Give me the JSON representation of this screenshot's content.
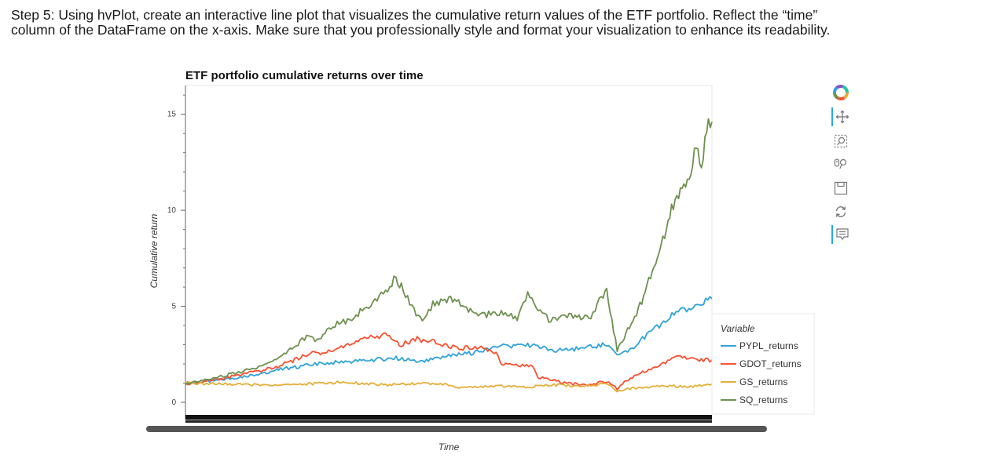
{
  "instructions": {
    "line1": "Step 5: Using hvPlot, create an interactive line plot that visualizes the cumulative return values of the ETF portfolio. Reflect the “time”",
    "line2": "column of the DataFrame on the x-axis. Make sure that you professionally style and format your visualization to enhance its readability."
  },
  "toolbar": {
    "tools": [
      {
        "icon": "bokeh-logo-icon",
        "active": false
      },
      {
        "icon": "pan-icon",
        "active": true
      },
      {
        "icon": "box-zoom-icon",
        "active": false
      },
      {
        "icon": "wheel-zoom-icon",
        "active": false
      },
      {
        "icon": "save-icon",
        "active": false
      },
      {
        "icon": "reset-icon",
        "active": false
      },
      {
        "icon": "hover-icon",
        "active": true
      }
    ],
    "accent_color": "#26aae1"
  },
  "chart_data": {
    "type": "line",
    "title": "ETF portfolio cumulative returns over time",
    "xlabel": "Time",
    "ylabel": "Cumulative return",
    "ylim": [
      -0.9,
      16.5
    ],
    "yticks": [
      0,
      5,
      10,
      15
    ],
    "ytick_labels": [
      "0",
      "5",
      "10",
      "15"
    ],
    "xlim": [
      0,
      100
    ],
    "x_tick_labels_legible": false,
    "grid": false,
    "legend_title": "Variable",
    "legend_position": "right-bottom",
    "series": [
      {
        "name": "PYPL_returns",
        "color": "#30a2da",
        "x": [
          0,
          5,
          10,
          15,
          20,
          25,
          30,
          35,
          40,
          45,
          50,
          55,
          60,
          65,
          70,
          75,
          80,
          82,
          84,
          86,
          88,
          90,
          92,
          94,
          96,
          98,
          100
        ],
        "values": [
          1.0,
          1.1,
          1.3,
          1.55,
          1.8,
          2.0,
          2.1,
          2.2,
          2.3,
          2.1,
          2.4,
          2.6,
          2.9,
          3.0,
          2.7,
          2.8,
          3.0,
          2.4,
          2.6,
          3.1,
          3.6,
          4.0,
          4.5,
          4.8,
          4.9,
          5.2,
          5.4
        ]
      },
      {
        "name": "GDOT_returns",
        "color": "#fc4f30",
        "x": [
          0,
          4,
          8,
          12,
          16,
          20,
          23,
          26,
          30,
          34,
          38,
          41,
          44,
          48,
          52,
          55,
          59,
          60,
          66,
          67,
          72,
          76,
          80,
          82,
          83,
          86,
          90,
          92,
          94,
          96,
          98,
          100
        ],
        "values": [
          0.95,
          1.1,
          1.3,
          1.5,
          1.75,
          2.1,
          2.5,
          2.6,
          2.9,
          3.3,
          3.5,
          3.0,
          3.3,
          3.1,
          2.8,
          2.9,
          2.6,
          2.0,
          1.9,
          1.3,
          1.0,
          0.9,
          1.1,
          0.7,
          1.0,
          1.5,
          1.9,
          2.2,
          2.4,
          2.3,
          2.2,
          2.2
        ]
      },
      {
        "name": "GS_returns",
        "color": "#e5ae38",
        "x": [
          0,
          8,
          15,
          23,
          30,
          38,
          45,
          50,
          52,
          55,
          60,
          65,
          70,
          75,
          80,
          82,
          84,
          88,
          92,
          96,
          100
        ],
        "values": [
          1.0,
          0.95,
          0.9,
          0.95,
          1.05,
          0.9,
          1.0,
          0.9,
          0.75,
          0.8,
          0.85,
          0.8,
          0.9,
          0.85,
          0.95,
          0.6,
          0.7,
          0.8,
          0.85,
          0.8,
          0.95
        ]
      },
      {
        "name": "SQ_returns",
        "color": "#6d904f",
        "x": [
          0,
          3,
          6,
          9,
          12,
          15,
          18,
          21,
          23,
          25,
          28,
          30,
          32,
          34,
          36,
          38,
          40,
          41,
          43,
          45,
          47,
          50,
          53,
          56,
          60,
          63,
          65,
          67,
          69,
          71,
          74,
          77,
          79,
          80,
          81,
          82,
          83,
          84,
          85,
          86,
          87,
          88,
          89,
          90,
          91,
          92,
          93,
          94,
          95,
          96,
          97,
          98,
          99,
          100
        ],
        "values": [
          0.95,
          1.1,
          1.3,
          1.5,
          1.7,
          1.9,
          2.3,
          3.0,
          3.4,
          3.2,
          4.0,
          4.2,
          4.4,
          4.9,
          5.2,
          5.8,
          6.5,
          6.0,
          5.0,
          4.2,
          5.1,
          5.4,
          5.0,
          4.5,
          4.7,
          4.4,
          5.6,
          4.8,
          4.3,
          4.4,
          4.5,
          4.4,
          5.5,
          5.8,
          4.3,
          2.7,
          3.2,
          3.8,
          4.3,
          4.8,
          5.5,
          6.3,
          7.2,
          7.8,
          8.7,
          9.8,
          10.6,
          11.0,
          11.3,
          12.0,
          13.6,
          12.1,
          14.4,
          14.6
        ]
      }
    ]
  }
}
